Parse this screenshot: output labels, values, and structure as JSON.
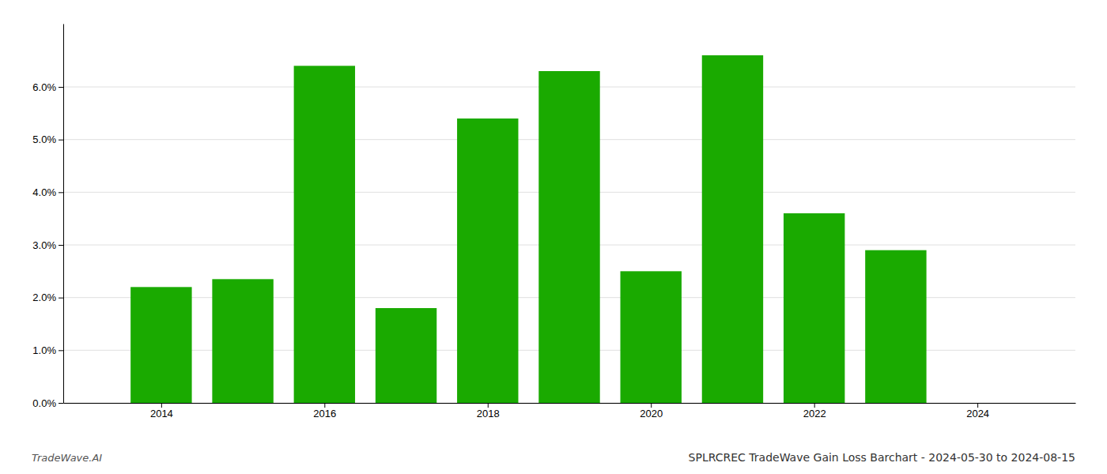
{
  "chart_data": {
    "type": "bar",
    "title": "SPLRCREC TradeWave Gain Loss Barchart - 2024-05-30 to 2024-08-15",
    "annotations": [
      "TradeWave.AI"
    ],
    "x": [
      2014,
      2015,
      2016,
      2017,
      2018,
      2019,
      2020,
      2021,
      2022,
      2023
    ],
    "values": [
      0.022,
      0.0235,
      0.064,
      0.018,
      0.054,
      0.063,
      0.025,
      0.066,
      0.036,
      0.029
    ],
    "color": "#1aaa00",
    "xlim": [
      2012.8,
      2025.2
    ],
    "xticks": [
      2014,
      2016,
      2018,
      2020,
      2022,
      2024
    ],
    "ylim": [
      0,
      0.072
    ],
    "yticks": [
      {
        "value": 0.0,
        "label": "0.0%"
      },
      {
        "value": 0.01,
        "label": "1.0%"
      },
      {
        "value": 0.02,
        "label": "2.0%"
      },
      {
        "value": 0.03,
        "label": "3.0%"
      },
      {
        "value": 0.04,
        "label": "4.0%"
      },
      {
        "value": 0.05,
        "label": "5.0%"
      },
      {
        "value": 0.06,
        "label": "6.0%"
      }
    ],
    "grid": true
  }
}
